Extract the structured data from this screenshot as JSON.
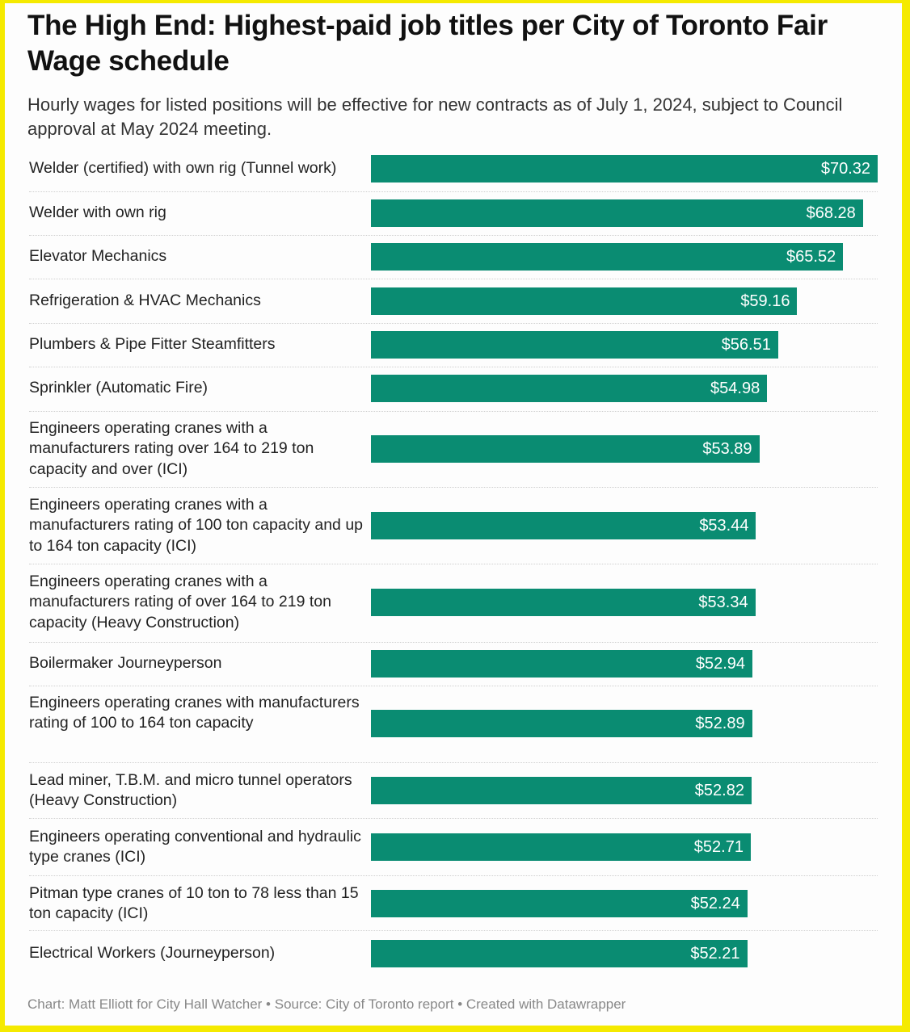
{
  "title": "The High End: Highest-paid job titles per City of Toronto Fair Wage schedule",
  "subtitle": "Hourly wages for listed positions will be effective for new contracts as of July 1, 2024, subject to Council approval at May 2024 meeting.",
  "footer": "Chart: Matt Elliott for City Hall Watcher • Source: City of Toronto report • Created with Datawrapper",
  "colors": {
    "bar": "#0a8c72",
    "frame": "#f5ea00"
  },
  "chart_data": {
    "type": "bar",
    "orientation": "horizontal",
    "title": "The High End: Highest-paid job titles per City of Toronto Fair Wage schedule",
    "subtitle": "Hourly wages for listed positions will be effective for new contracts as of July 1, 2024, subject to Council approval at May 2024 meeting.",
    "xlabel": "",
    "ylabel": "",
    "xlim": [
      0,
      70.32
    ],
    "grid": false,
    "value_prefix": "$",
    "categories": [
      "Welder (certified) with own rig (Tunnel work)",
      "Welder with own rig",
      "Elevator Mechanics",
      "Refrigeration & HVAC Mechanics",
      "Plumbers & Pipe Fitter Steamfitters",
      "Sprinkler (Automatic Fire)",
      "Engineers operating cranes with a manufacturers rating over 164 to 219 ton capacity and over (ICI)",
      "Engineers operating cranes with a manufacturers rating of 100 ton capacity and up to 164 ton capacity (ICI)",
      "Engineers operating cranes with a manufacturers rating of over 164 to 219 ton capacity (Heavy Construction)",
      "Boilermaker Journeyperson",
      "Engineers operating cranes with manufacturers rating of 100 to 164 ton capacity",
      "Lead miner, T.B.M. and micro tunnel operators (Heavy Construction)",
      "Engineers operating conventional and hydraulic type cranes (ICI)",
      "Pitman type cranes of 10 ton to 78 less than 15 ton capacity (ICI)",
      "Electrical Workers (Journeyperson)"
    ],
    "values": [
      70.32,
      68.28,
      65.52,
      59.16,
      56.51,
      54.98,
      53.89,
      53.44,
      53.34,
      52.94,
      52.89,
      52.82,
      52.71,
      52.24,
      52.21
    ],
    "data_labels": [
      "$70.32",
      "$68.28",
      "$65.52",
      "$59.16",
      "$56.51",
      "$54.98",
      "$53.89",
      "$53.44",
      "$53.34",
      "$52.94",
      "$52.89",
      "$52.82",
      "$52.71",
      "$52.24",
      "$52.21"
    ]
  }
}
